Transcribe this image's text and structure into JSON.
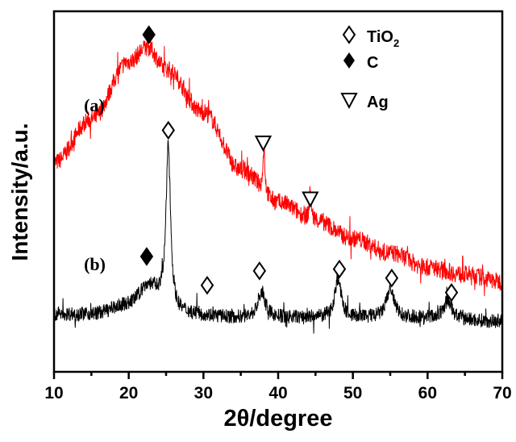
{
  "chart_data": {
    "type": "line",
    "title": "",
    "xlabel": "2θ/degree",
    "ylabel": "Intensity/a.u.",
    "xlim": [
      10,
      70
    ],
    "ylim": [
      0,
      100
    ],
    "xticks": [
      "10",
      "20",
      "30",
      "40",
      "50",
      "60",
      "70"
    ],
    "grid": false,
    "legend_position": "top-right",
    "legend": [
      {
        "symbol": "open-diamond",
        "label": "TiO",
        "sub": "2"
      },
      {
        "symbol": "filled-diamond",
        "label": "C"
      },
      {
        "symbol": "open-triangle-down",
        "label": "Ag"
      }
    ],
    "series": [
      {
        "name": "(a)",
        "color": "#ff0000",
        "noise": 5,
        "baseline": [
          [
            10,
            58
          ],
          [
            15,
            70
          ],
          [
            20,
            86
          ],
          [
            22.5,
            90
          ],
          [
            25,
            84
          ],
          [
            30,
            72
          ],
          [
            35,
            56
          ],
          [
            40,
            47
          ],
          [
            45,
            42
          ],
          [
            50,
            37
          ],
          [
            55,
            33
          ],
          [
            60,
            29
          ],
          [
            65,
            27
          ],
          [
            70,
            25
          ]
        ],
        "peaks": [
          [
            38.1,
            13,
            0.15
          ],
          [
            44.3,
            8,
            0.15
          ]
        ]
      },
      {
        "name": "(b)",
        "color": "#000000",
        "noise": 4,
        "baseline": [
          [
            10,
            16
          ],
          [
            15,
            16
          ],
          [
            20,
            18
          ],
          [
            23,
            20
          ],
          [
            27,
            16
          ],
          [
            35,
            15
          ],
          [
            45,
            15
          ],
          [
            60,
            15
          ],
          [
            70,
            14
          ]
        ],
        "peaks": [
          [
            22.5,
            4,
            1.5
          ],
          [
            25.3,
            46,
            0.35
          ],
          [
            37.8,
            7,
            0.6
          ],
          [
            48.0,
            11,
            0.5
          ],
          [
            55.0,
            8,
            0.6
          ],
          [
            62.7,
            5,
            0.6
          ]
        ]
      }
    ],
    "annotations": [
      {
        "series": "(a)",
        "x": 22.7,
        "y": 93.5,
        "symbol": "filled-diamond"
      },
      {
        "series": "(a)",
        "x": 38.0,
        "y": 63.5,
        "symbol": "open-triangle-down"
      },
      {
        "series": "(a)",
        "x": 44.3,
        "y": 48,
        "symbol": "open-triangle-down"
      },
      {
        "series": "(b)",
        "x": 22.4,
        "y": 32,
        "symbol": "filled-diamond"
      },
      {
        "series": "(b)",
        "x": 25.3,
        "y": 67,
        "symbol": "open-diamond"
      },
      {
        "series": "(b)",
        "x": 30.5,
        "y": 24,
        "symbol": "open-diamond"
      },
      {
        "series": "(b)",
        "x": 37.5,
        "y": 28,
        "symbol": "open-diamond"
      },
      {
        "series": "(b)",
        "x": 48.2,
        "y": 28.5,
        "symbol": "open-diamond"
      },
      {
        "series": "(b)",
        "x": 55.2,
        "y": 26,
        "symbol": "open-diamond"
      },
      {
        "series": "(b)",
        "x": 63.2,
        "y": 22,
        "symbol": "open-diamond"
      }
    ],
    "series_labels": [
      {
        "text": "(a)",
        "x": 14,
        "y": 74
      },
      {
        "text": "(b)",
        "x": 14,
        "y": 30
      }
    ]
  }
}
